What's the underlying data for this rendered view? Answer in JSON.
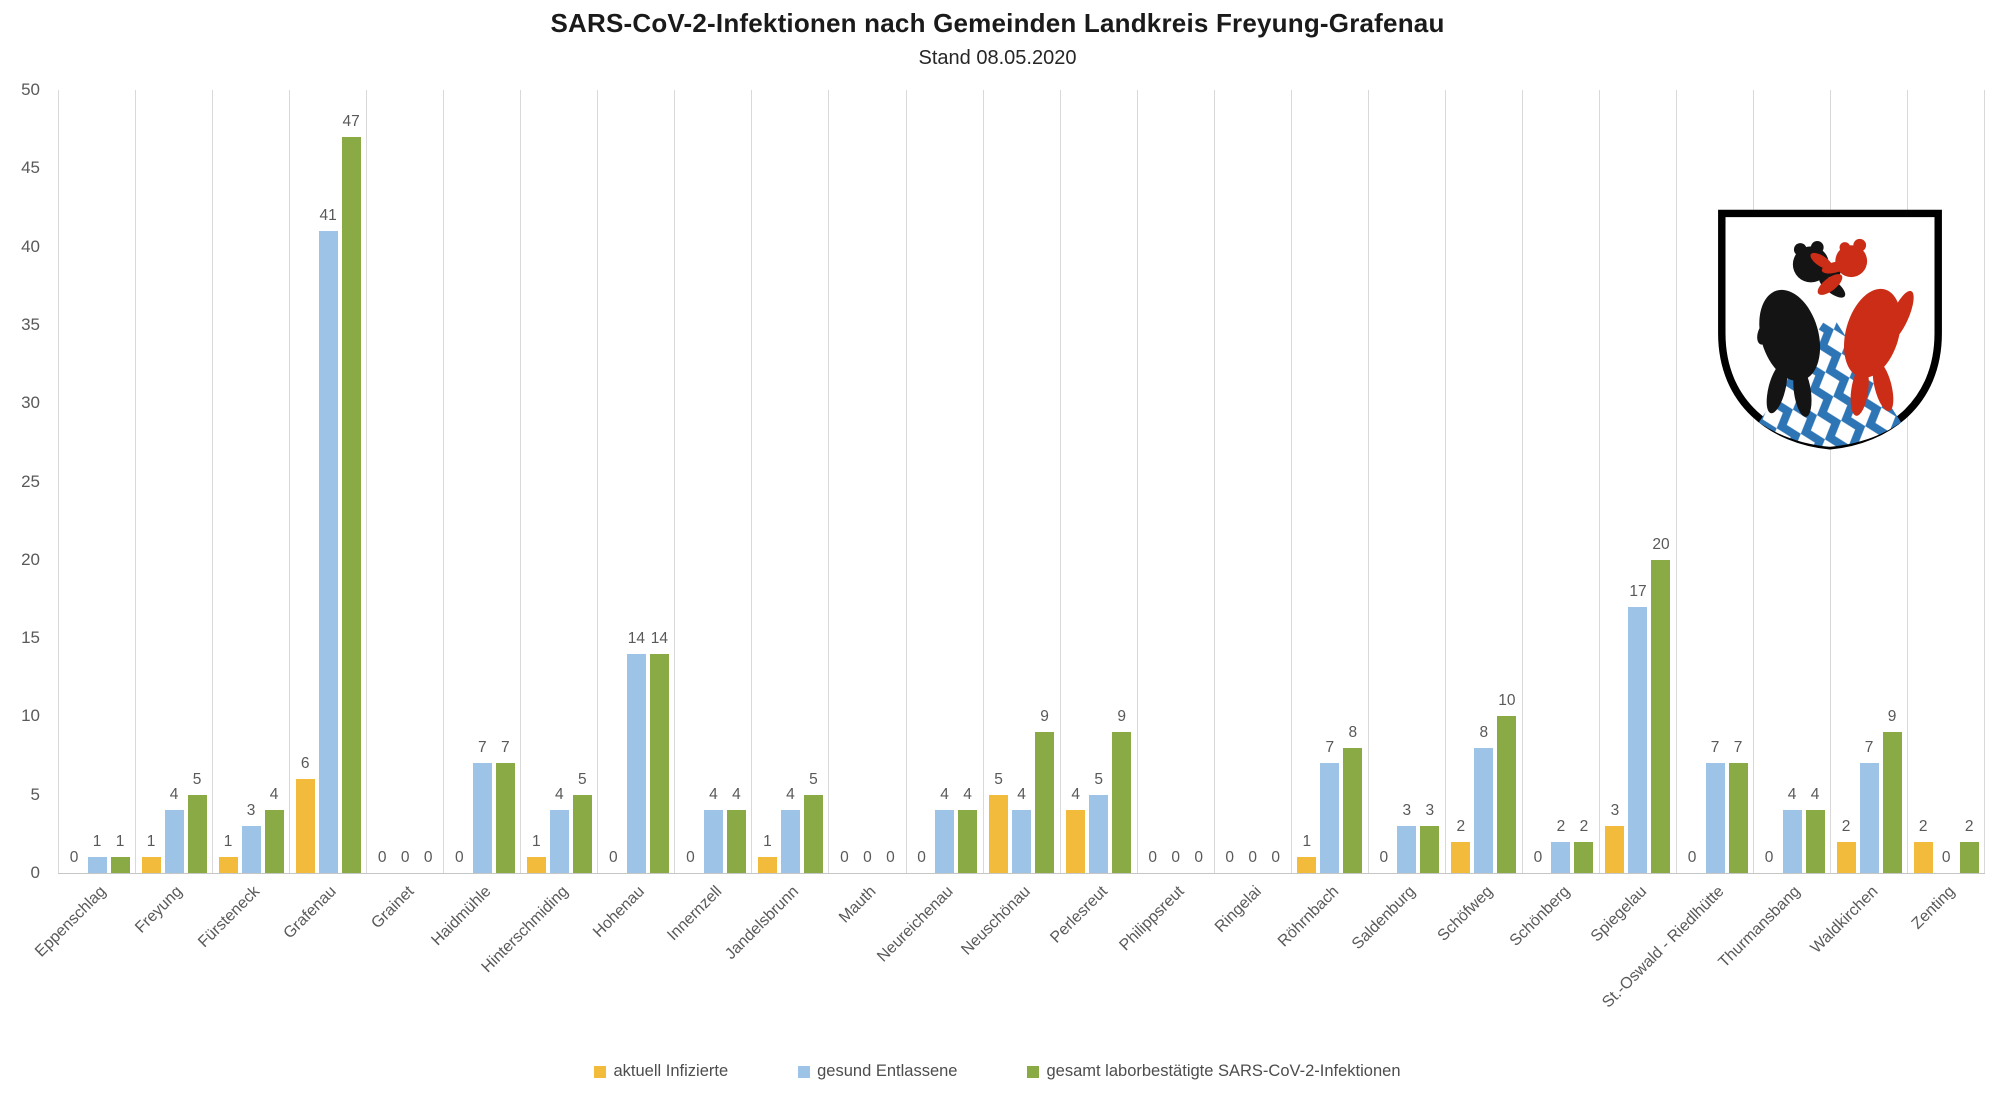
{
  "header": {
    "title": "SARS-CoV-2-Infektionen nach Gemeinden Landkreis Freyung-Grafenau",
    "subtitle": "Stand 08.05.2020"
  },
  "chart_data": {
    "type": "bar",
    "title": "SARS-CoV-2-Infektionen nach Gemeinden Landkreis Freyung-Grafenau",
    "subtitle": "Stand 08.05.2020",
    "categories": [
      "Eppenschlag",
      "Freyung",
      "Fürsteneck",
      "Grafenau",
      "Grainet",
      "Haidmühle",
      "Hinterschmiding",
      "Hohenau",
      "Innernzell",
      "Jandelsbrunn",
      "Mauth",
      "Neureichenau",
      "Neuschönau",
      "Perlesreut",
      "Philippsreut",
      "Ringelai",
      "Röhrnbach",
      "Saldenburg",
      "Schöfweg",
      "Schönberg",
      "Spiegelau",
      "St.-Oswald - Riedlhütte",
      "Thurmansbang",
      "Waldkirchen",
      "Zenting"
    ],
    "series": [
      {
        "name": "aktuell Infizierte",
        "color": "#F3BB3B",
        "values": [
          0,
          1,
          1,
          6,
          0,
          0,
          1,
          0,
          0,
          1,
          0,
          0,
          5,
          4,
          0,
          0,
          1,
          0,
          2,
          0,
          3,
          0,
          0,
          2,
          2
        ]
      },
      {
        "name": "gesund Entlassene",
        "color": "#9DC3E6",
        "values": [
          1,
          4,
          3,
          41,
          0,
          7,
          4,
          14,
          4,
          4,
          0,
          4,
          4,
          5,
          0,
          0,
          7,
          3,
          8,
          2,
          17,
          7,
          4,
          7,
          0
        ]
      },
      {
        "name": "gesamt laborbestätigte SARS-CoV-2-Infektionen",
        "color": "#8AAA46",
        "values": [
          1,
          5,
          4,
          47,
          0,
          7,
          5,
          14,
          4,
          5,
          0,
          4,
          9,
          9,
          0,
          0,
          8,
          3,
          10,
          2,
          20,
          7,
          4,
          9,
          2
        ]
      }
    ],
    "ylim": [
      0,
      50
    ],
    "yticks": [
      0,
      5,
      10,
      15,
      20,
      25,
      30,
      35,
      40,
      45,
      50
    ],
    "xlabel": "",
    "ylabel": "",
    "grid": "vertical-category-separators-only",
    "legend_position": "bottom-center",
    "data_labels": true
  },
  "colors": {
    "grid_line": "#d9d9d9",
    "axis_line": "#c6c6c6",
    "tick_text": "#595959",
    "value_label_text": "#595959"
  },
  "coat_of_arms": {
    "name": "Wappen Landkreis Freyung-Grafenau",
    "colors": {
      "field": "#ffffff",
      "border": "#000000",
      "bear": "#141414",
      "wolf": "#cb2d17",
      "wedge": "#2e75b6",
      "lozenges": "#ffffff"
    }
  }
}
